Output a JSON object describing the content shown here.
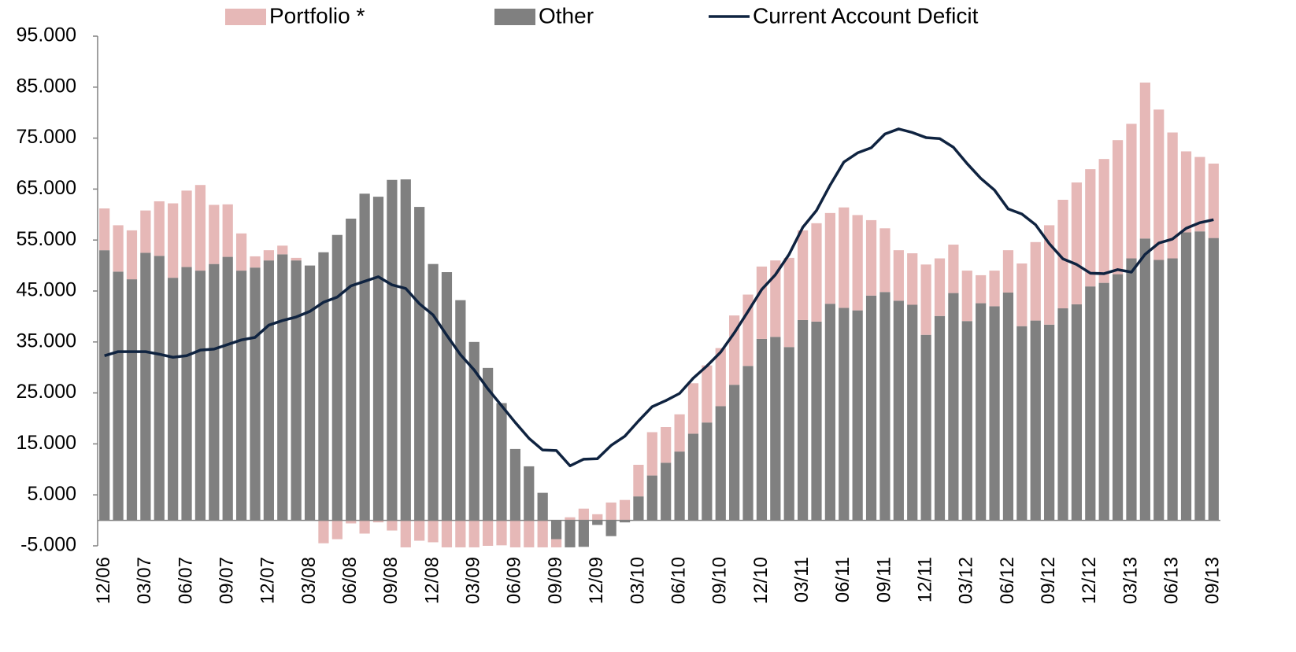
{
  "chart_data": {
    "type": "bar",
    "stacked": true,
    "categories": [
      "12/06",
      null,
      null,
      "03/07",
      null,
      null,
      "06/07",
      null,
      null,
      "09/07",
      null,
      null,
      "12/07",
      null,
      null,
      "03/08",
      null,
      null,
      "06/08",
      null,
      null,
      "09/08",
      null,
      null,
      "12/08",
      null,
      null,
      "03/09",
      null,
      null,
      "06/09",
      null,
      null,
      "09/09",
      null,
      null,
      "12/09",
      null,
      null,
      "03/10",
      null,
      null,
      "06/10",
      null,
      null,
      "09/10",
      null,
      null,
      "12/10",
      null,
      null,
      "03/11",
      null,
      null,
      "06/11",
      null,
      null,
      "09/11",
      null,
      null,
      "12/11",
      null,
      null,
      "03/12",
      null,
      null,
      "06/12",
      null,
      null,
      "09/12",
      null,
      null,
      "12/12",
      null,
      null,
      "03/13",
      null,
      null,
      "06/13",
      null,
      null,
      "09/13"
    ],
    "series": [
      {
        "name": "Portfolio *",
        "type": "bar",
        "color": "#e6b8b7",
        "values": [
          8200,
          9100,
          9600,
          8300,
          10700,
          14600,
          15000,
          16800,
          11600,
          10300,
          7300,
          2200,
          2000,
          1700,
          500,
          0,
          -4500,
          -3700,
          -600,
          -2600,
          -400,
          -2000,
          -5300,
          -4000,
          -4300,
          -5300,
          -5300,
          -5300,
          -5000,
          -4900,
          -5300,
          -5300,
          -5300,
          -1600,
          600,
          2300,
          1200,
          3500,
          4000,
          6200,
          8500,
          7000,
          7300,
          9900,
          11200,
          11400,
          13600,
          14000,
          14200,
          15000,
          17500,
          17600,
          19300,
          17800,
          19700,
          18700,
          14800,
          12500,
          9900,
          10100,
          13800,
          11300,
          9500,
          9900,
          5500,
          7000,
          8300,
          12300,
          15400,
          19500,
          21300,
          23900,
          23000,
          24300,
          26300,
          26400,
          30600,
          29500,
          24700,
          15900,
          14600,
          14600
        ]
      },
      {
        "name": "Other",
        "type": "bar",
        "color": "#808080",
        "values": [
          53000,
          48800,
          47300,
          52500,
          51900,
          47600,
          49700,
          49000,
          50300,
          51700,
          49000,
          49600,
          51000,
          52200,
          51000,
          50000,
          52600,
          56000,
          59200,
          64100,
          63500,
          66800,
          66900,
          61500,
          50300,
          48700,
          43200,
          35000,
          29900,
          23000,
          14000,
          10600,
          5400,
          -3700,
          -5300,
          -5200,
          -900,
          -3100,
          -400,
          4700,
          8800,
          11300,
          13500,
          17000,
          19200,
          22400,
          26600,
          30300,
          35600,
          36000,
          34000,
          39300,
          39000,
          42500,
          41700,
          41200,
          44100,
          44800,
          43100,
          42300,
          36400,
          40100,
          44600,
          39100,
          42600,
          42000,
          44700,
          38100,
          39200,
          38400,
          41600,
          42400,
          45900,
          46600,
          48300,
          51400,
          55300,
          51100,
          51400,
          56500,
          56700,
          55400
        ]
      },
      {
        "name": "Current Account Deficit",
        "type": "line",
        "color": "#0f2340",
        "values": [
          32300,
          33100,
          33100,
          33100,
          32600,
          32000,
          32300,
          33400,
          33600,
          34500,
          35400,
          35900,
          38300,
          39200,
          39900,
          41000,
          42800,
          43800,
          46000,
          46900,
          47800,
          46200,
          45500,
          42500,
          40300,
          36300,
          32500,
          29500,
          25800,
          22500,
          19200,
          16100,
          13800,
          13700,
          10700,
          12000,
          12100,
          14700,
          16500,
          19500,
          22300,
          23500,
          24900,
          27900,
          30300,
          33000,
          36800,
          41000,
          45300,
          48200,
          52200,
          57500,
          60800,
          65800,
          70300,
          72100,
          73100,
          75800,
          76800,
          76100,
          75100,
          74900,
          73200,
          70000,
          67100,
          64800,
          61100,
          60100,
          58000,
          54300,
          51300,
          50200,
          48500,
          48400,
          49200,
          48700,
          52200,
          54400,
          55200,
          57300,
          58400,
          59000
        ]
      }
    ],
    "ylim": [
      -5000,
      95000
    ],
    "yticks": [
      {
        "value": -5000,
        "label": "-5.000"
      },
      {
        "value": 5000,
        "label": "5.000"
      },
      {
        "value": 15000,
        "label": "15.000"
      },
      {
        "value": 25000,
        "label": "25.000"
      },
      {
        "value": 35000,
        "label": "35.000"
      },
      {
        "value": 45000,
        "label": "45.000"
      },
      {
        "value": 55000,
        "label": "55.000"
      },
      {
        "value": 65000,
        "label": "65.000"
      },
      {
        "value": 75000,
        "label": "75.000"
      },
      {
        "value": 85000,
        "label": "85.000"
      },
      {
        "value": 95000,
        "label": "95.000"
      }
    ],
    "grid": false,
    "legend": "top"
  }
}
